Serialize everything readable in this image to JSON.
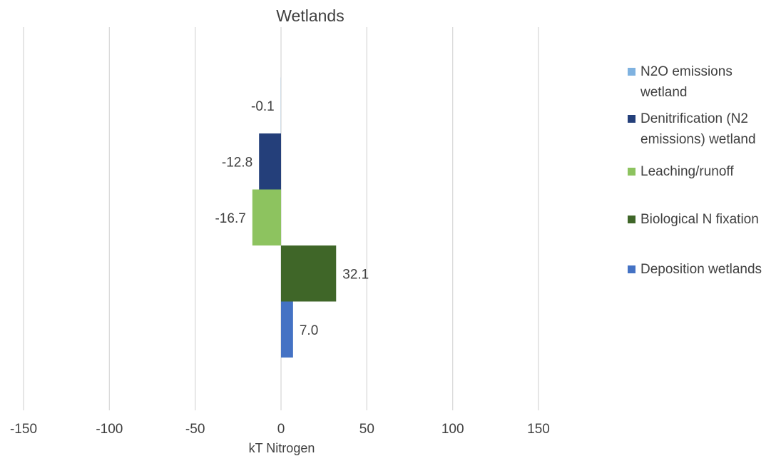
{
  "chart_data": {
    "type": "bar",
    "orientation": "horizontal",
    "title": "Wetlands",
    "xlabel": "kT Nitrogen",
    "ylabel": "",
    "xlim": [
      -150,
      150
    ],
    "xticks": [
      -150,
      -100,
      -50,
      0,
      50,
      100,
      150
    ],
    "grid": true,
    "legend_position": "right",
    "series": [
      {
        "name": "N2O emissions wetland",
        "legend_lines": [
          "N2O emissions",
          "wetland"
        ],
        "value": -0.1,
        "label": "-0.1",
        "color": "#7fb2e0"
      },
      {
        "name": "Denitrification (N2 emissions) wetland",
        "legend_lines": [
          "Denitrification (N2",
          "emissions) wetland"
        ],
        "value": -12.8,
        "label": "-12.8",
        "color": "#243f7a"
      },
      {
        "name": "Leaching/runoff",
        "legend_lines": [
          "Leaching/runoff"
        ],
        "value": -16.7,
        "label": "-16.7",
        "color": "#8dc35f"
      },
      {
        "name": "Biological N fixation",
        "legend_lines": [
          "Biological N fixation"
        ],
        "value": 32.1,
        "label": "32.1",
        "color": "#3f6628"
      },
      {
        "name": "Deposition wetlands",
        "legend_lines": [
          "Deposition wetlands"
        ],
        "value": 7.0,
        "label": "7.0",
        "color": "#4472c4"
      }
    ]
  }
}
